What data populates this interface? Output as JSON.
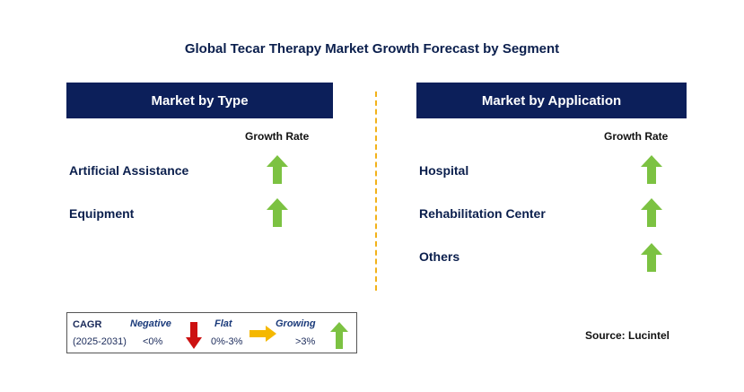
{
  "title": "Global Tecar Therapy Market Growth Forecast by Segment",
  "left_panel": {
    "header": "Market by Type",
    "growth_rate_label": "Growth Rate",
    "items": [
      {
        "label": "Artificial Assistance",
        "trend": "growing"
      },
      {
        "label": "Equipment",
        "trend": "growing"
      }
    ]
  },
  "right_panel": {
    "header": "Market by Application",
    "growth_rate_label": "Growth Rate",
    "items": [
      {
        "label": "Hospital",
        "trend": "growing"
      },
      {
        "label": "Rehabilitation Center",
        "trend": "growing"
      },
      {
        "label": "Others",
        "trend": "growing"
      }
    ]
  },
  "legend": {
    "cagr_label": "CAGR",
    "period": "(2025-2031)",
    "negative_label": "Negative",
    "negative_range": "<0%",
    "flat_label": "Flat",
    "flat_range": "0%-3%",
    "growing_label": "Growing",
    "growing_range": ">3%"
  },
  "source": "Source: Lucintel",
  "colors": {
    "header_bg": "#0c1f5a",
    "growing_arrow": "#7cc242",
    "negative_arrow": "#cc1111",
    "flat_arrow": "#f5b800",
    "divider": "#f2b21a"
  }
}
